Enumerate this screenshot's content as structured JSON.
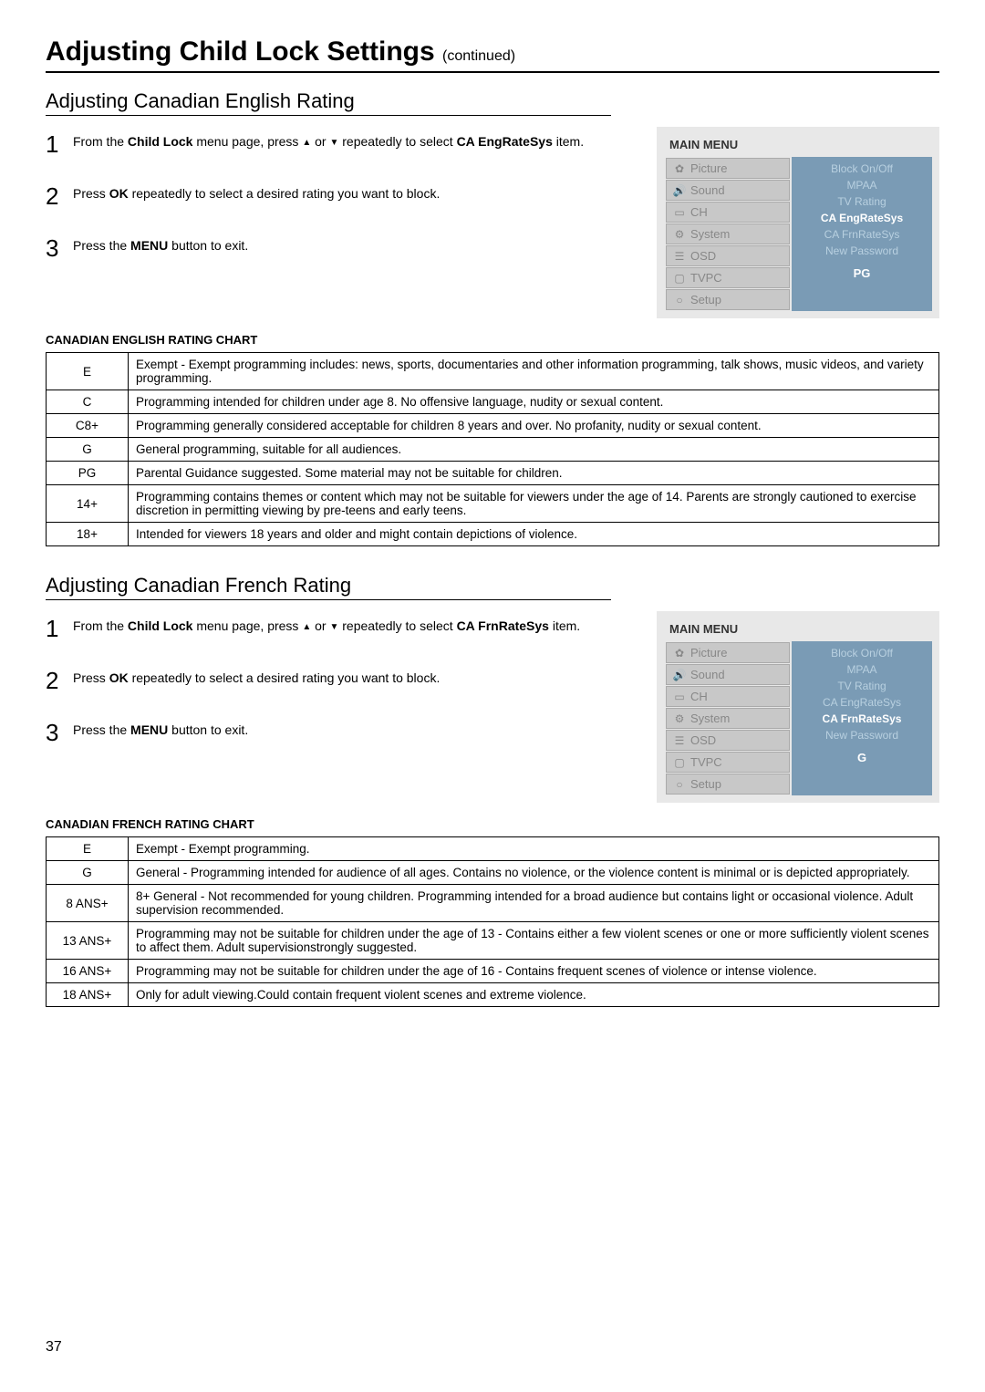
{
  "page": {
    "title": "Adjusting Child Lock Settings",
    "continued": "(continued)",
    "number": "37"
  },
  "english_section": {
    "heading": "Adjusting Canadian English Rating",
    "steps": {
      "s1_pre": "From the ",
      "s1_bold1": "Child Lock",
      "s1_mid": " menu page, press ",
      "s1_mid2": " or ",
      "s1_mid3": " repeatedly to select ",
      "s1_bold2": "CA EngRateSys",
      "s1_post": " item.",
      "s2_pre": "Press ",
      "s2_bold": "OK",
      "s2_post": " repeatedly to select a desired rating you want to block.",
      "s3_pre": "Press the ",
      "s3_bold": "MENU",
      "s3_post": " button to exit."
    },
    "chart_title": "CANADIAN ENGLISH RATING CHART",
    "rows": [
      {
        "code": "E",
        "desc": "Exempt - Exempt programming includes: news, sports, documentaries and other information programming, talk shows, music videos, and variety programming."
      },
      {
        "code": "C",
        "desc": "Programming intended for children under age 8. No offensive language, nudity or sexual content."
      },
      {
        "code": "C8+",
        "desc": "Programming generally considered acceptable for children 8 years and over. No profanity, nudity or sexual content."
      },
      {
        "code": "G",
        "desc": "General programming, suitable for all audiences."
      },
      {
        "code": "PG",
        "desc": "Parental Guidance suggested. Some material may not be suitable for children."
      },
      {
        "code": "14+",
        "desc": "Programming contains themes or content which may not be suitable for viewers under the age of 14. Parents are strongly cautioned to exercise discretion in permitting viewing by pre-teens and early teens."
      },
      {
        "code": "18+",
        "desc": "Intended for viewers 18 years and older and might contain depictions of violence."
      }
    ],
    "menu": {
      "header": "MAIN MENU",
      "left_items": [
        {
          "icon": "✿",
          "label": "Picture"
        },
        {
          "icon": "🔊",
          "label": "Sound"
        },
        {
          "icon": "▭",
          "label": "CH"
        },
        {
          "icon": "⚙",
          "label": "System"
        },
        {
          "icon": "☰",
          "label": "OSD"
        },
        {
          "icon": "▢",
          "label": "TVPC"
        },
        {
          "icon": "○",
          "label": "Setup"
        }
      ],
      "right_items": [
        "Block On/Off",
        "MPAA",
        "TV Rating",
        "CA EngRateSys",
        "CA FrnRateSys",
        "New Password"
      ],
      "active_index": 3,
      "value": "PG"
    }
  },
  "french_section": {
    "heading": "Adjusting Canadian French Rating",
    "steps": {
      "s1_pre": "From the ",
      "s1_bold1": "Child Lock",
      "s1_mid": " menu page, press ",
      "s1_mid2": " or ",
      "s1_mid3": " repeatedly to select ",
      "s1_bold2": "CA FrnRateSys",
      "s1_post": " item.",
      "s2_pre": "Press ",
      "s2_bold": "OK",
      "s2_post": " repeatedly to select a desired rating you want to block.",
      "s3_pre": "Press the ",
      "s3_bold": "MENU",
      "s3_post": " button to exit."
    },
    "chart_title": "CANADIAN FRENCH RATING CHART",
    "rows": [
      {
        "code": "E",
        "desc": "Exempt - Exempt programming."
      },
      {
        "code": "G",
        "desc": "General - Programming intended for audience of all ages. Contains no violence, or the violence content is minimal or is depicted appropriately."
      },
      {
        "code": "8 ANS+",
        "desc": "8+ General - Not recommended for young children. Programming intended for a broad audience but contains light or occasional violence. Adult supervision recommended."
      },
      {
        "code": "13 ANS+",
        "desc": "Programming may not be suitable for children under the age of 13 - Contains either a few violent scenes or one or more sufficiently violent scenes to affect them. Adult supervisionstrongly suggested."
      },
      {
        "code": "16 ANS+",
        "desc": "Programming may not be suitable for children under the age of 16 - Contains frequent scenes of violence or intense violence."
      },
      {
        "code": "18 ANS+",
        "desc": "Only for adult viewing.Could contain frequent violent scenes and extreme violence."
      }
    ],
    "menu": {
      "header": "MAIN MENU",
      "left_items": [
        {
          "icon": "✿",
          "label": "Picture"
        },
        {
          "icon": "🔊",
          "label": "Sound"
        },
        {
          "icon": "▭",
          "label": "CH"
        },
        {
          "icon": "⚙",
          "label": "System"
        },
        {
          "icon": "☰",
          "label": "OSD"
        },
        {
          "icon": "▢",
          "label": "TVPC"
        },
        {
          "icon": "○",
          "label": "Setup"
        }
      ],
      "right_items": [
        "Block On/Off",
        "MPAA",
        "TV Rating",
        "CA EngRateSys",
        "CA FrnRateSys",
        "New Password"
      ],
      "active_index": 4,
      "value": "G"
    }
  }
}
